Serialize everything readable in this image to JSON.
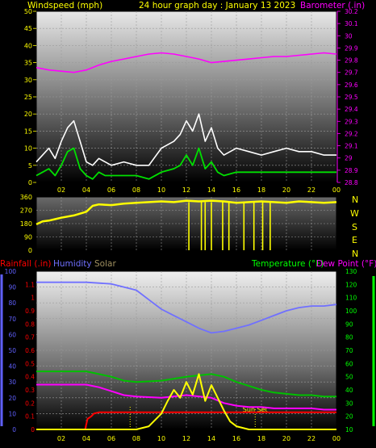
{
  "header": {
    "left_label": "Windspeed (mph)",
    "center_label": "24 hour graph day : January 13 2023",
    "right_label": "Barometer (.in)"
  },
  "bottom_header": {
    "rainfall": "Rainfall (.in)",
    "humidity": "Humidity",
    "solar": "Solar",
    "temperature": "Temperature (°F)",
    "dewpoint": "Dew Point (°F)"
  },
  "compass": [
    "N",
    "W",
    "S",
    "E",
    "N"
  ],
  "colors": {
    "wind_gust": "#ffffff",
    "wind_avg": "#00e000",
    "barometer": "#ff00ff",
    "direction": "#ffff00",
    "humidity": "#7070ff",
    "rainfall": "#ff0000",
    "solar": "#ffff00",
    "temperature": "#00c000",
    "dewpoint": "#ff00ff",
    "axis_green": "#00ff00",
    "axis_blue": "#6060ff"
  },
  "chart_data": [
    {
      "type": "line",
      "name": "wind_barometer",
      "x_ticks": [
        "02",
        "04",
        "06",
        "08",
        "10",
        "12",
        "14",
        "16",
        "18",
        "20",
        "22",
        "00"
      ],
      "left_axis": {
        "range": [
          0,
          50
        ],
        "ticks": [
          0,
          5,
          10,
          15,
          20,
          25,
          30,
          35,
          40,
          45,
          50
        ]
      },
      "right_axis": {
        "range": [
          28.8,
          30.2
        ],
        "ticks": [
          "28.8",
          "28.9",
          "29",
          "29.1",
          "29.2",
          "29.3",
          "29.4",
          "29.5",
          "29.6",
          "29.7",
          "29.8",
          "29.9",
          "30",
          "30.1",
          "30.2"
        ]
      },
      "series": [
        {
          "key": "gust",
          "axis": "left",
          "x": [
            0,
            0.5,
            1,
            1.5,
            2,
            2.5,
            3,
            3.5,
            4,
            4.5,
            5,
            5.5,
            6,
            7,
            8,
            9,
            10,
            11,
            11.5,
            12,
            12.5,
            13,
            13.5,
            14,
            14.5,
            15,
            16,
            17,
            18,
            19,
            20,
            21,
            22,
            23,
            24
          ],
          "y": [
            6,
            8,
            10,
            7,
            12,
            16,
            18,
            12,
            6,
            5,
            7,
            6,
            5,
            6,
            5,
            5,
            10,
            12,
            14,
            18,
            15,
            20,
            12,
            16,
            10,
            8,
            10,
            9,
            8,
            9,
            10,
            9,
            9,
            8,
            8
          ]
        },
        {
          "key": "avg",
          "axis": "left",
          "x": [
            0,
            0.5,
            1,
            1.5,
            2,
            2.5,
            3,
            3.5,
            4,
            4.5,
            5,
            5.5,
            6,
            7,
            8,
            9,
            10,
            11,
            11.5,
            12,
            12.5,
            13,
            13.5,
            14,
            14.5,
            15,
            16,
            17,
            18,
            19,
            20,
            21,
            22,
            23,
            24
          ],
          "y": [
            2,
            3,
            4,
            2,
            5,
            9,
            10,
            4,
            2,
            1,
            3,
            2,
            2,
            2,
            2,
            1,
            3,
            4,
            5,
            8,
            5,
            10,
            4,
            6,
            3,
            2,
            3,
            3,
            3,
            3,
            3,
            3,
            3,
            3,
            3
          ]
        },
        {
          "key": "barometer",
          "axis": "right",
          "x": [
            0,
            1,
            2,
            3,
            4,
            5,
            6,
            7,
            8,
            9,
            10,
            11,
            12,
            13,
            14,
            15,
            16,
            17,
            18,
            19,
            20,
            21,
            22,
            23,
            24
          ],
          "y": [
            29.74,
            29.72,
            29.71,
            29.7,
            29.72,
            29.76,
            29.79,
            29.81,
            29.83,
            29.85,
            29.86,
            29.85,
            29.83,
            29.81,
            29.78,
            29.79,
            29.8,
            29.81,
            29.82,
            29.83,
            29.83,
            29.84,
            29.85,
            29.86,
            29.85
          ]
        }
      ]
    },
    {
      "type": "line",
      "name": "wind_direction",
      "x_ticks": [
        "02",
        "04",
        "06",
        "08",
        "10",
        "12",
        "14",
        "16",
        "18",
        "20",
        "22",
        "00"
      ],
      "left_axis": {
        "range": [
          0,
          360
        ],
        "ticks": [
          0,
          90,
          180,
          270,
          360
        ]
      },
      "series": [
        {
          "key": "direction",
          "x": [
            0,
            0.5,
            1,
            1.5,
            2,
            3,
            4,
            4.5,
            5,
            6,
            7,
            8,
            9,
            10,
            11,
            12,
            13,
            14,
            15,
            16,
            17,
            18,
            19,
            20,
            21,
            22,
            23,
            24
          ],
          "y": [
            175,
            195,
            200,
            210,
            220,
            235,
            260,
            300,
            310,
            305,
            315,
            320,
            325,
            330,
            325,
            335,
            330,
            335,
            330,
            320,
            325,
            330,
            325,
            320,
            330,
            325,
            320,
            325
          ]
        },
        {
          "key": "spikes",
          "x": [
            12.2,
            13.2,
            13.5,
            14.0,
            14.9,
            15.4,
            16.6,
            17.4,
            18.1,
            18.7
          ],
          "y": [
            0,
            0,
            0,
            0,
            0,
            0,
            0,
            0,
            0,
            0
          ]
        }
      ]
    },
    {
      "type": "line",
      "name": "rain_humidity_solar_temp",
      "x_ticks": [
        "02",
        "04",
        "06",
        "08",
        "10",
        "12",
        "14",
        "16",
        "18",
        "20",
        "22",
        "00"
      ],
      "left_axis": {
        "range": [
          0,
          100
        ],
        "ticks": [
          0,
          10,
          20,
          30,
          40,
          50,
          60,
          70,
          80,
          90,
          100
        ]
      },
      "rain_axis": {
        "range": [
          0,
          1.2
        ],
        "ticks": [
          "0",
          "0.1",
          "0.2",
          "0.3",
          "0.4",
          "0.5",
          "0.6",
          "0.7",
          "0.8",
          "0.9",
          "1",
          "1.1"
        ]
      },
      "right_axis": {
        "range": [
          10,
          130
        ],
        "ticks": [
          10,
          20,
          30,
          40,
          50,
          60,
          70,
          80,
          90,
          100,
          110,
          120,
          130
        ]
      },
      "series": [
        {
          "key": "humidity",
          "axis": "left",
          "x": [
            0,
            2,
            4,
            6,
            7,
            8,
            9,
            10,
            11,
            12,
            13,
            14,
            15,
            16,
            17,
            18,
            19,
            20,
            21,
            22,
            23,
            24
          ],
          "y": [
            93,
            93,
            93,
            92,
            90,
            88,
            82,
            76,
            72,
            68,
            64,
            61,
            62,
            64,
            66,
            69,
            72,
            75,
            77,
            78,
            78,
            79
          ]
        },
        {
          "key": "rainfall",
          "axis": "rain",
          "x": [
            0,
            3.9,
            4.1,
            4.4,
            4.6,
            5,
            6,
            8,
            10,
            12,
            14,
            16,
            18,
            20,
            22,
            24
          ],
          "y": [
            0,
            0,
            0.08,
            0.1,
            0.12,
            0.13,
            0.13,
            0.13,
            0.13,
            0.13,
            0.13,
            0.13,
            0.13,
            0.13,
            0.13,
            0.13
          ]
        },
        {
          "key": "solar",
          "axis": "left",
          "x": [
            0,
            8,
            9,
            9.5,
            10,
            10.5,
            11,
            11.5,
            12,
            12.5,
            13,
            13.5,
            14,
            14.5,
            15,
            15.5,
            16,
            17,
            24
          ],
          "y": [
            0,
            0,
            2,
            6,
            10,
            18,
            25,
            20,
            30,
            22,
            35,
            18,
            28,
            20,
            12,
            5,
            2,
            0,
            0
          ]
        },
        {
          "key": "temperature",
          "axis": "right",
          "x": [
            0,
            2,
            4,
            5,
            6,
            7,
            8,
            10,
            12,
            14,
            15,
            16,
            17,
            18,
            19,
            20,
            21,
            22,
            23,
            24
          ],
          "y": [
            54,
            54,
            54,
            52,
            50,
            47,
            46,
            47,
            50,
            52,
            50,
            46,
            43,
            40,
            38,
            37,
            36,
            36,
            35,
            35
          ]
        },
        {
          "key": "dewpoint",
          "axis": "right",
          "x": [
            0,
            2,
            4,
            5,
            6,
            7,
            8,
            10,
            12,
            14,
            15,
            16,
            17,
            18,
            19,
            20,
            21,
            22,
            23,
            24
          ],
          "y": [
            44,
            44,
            44,
            42,
            39,
            36,
            35,
            34,
            36,
            34,
            30,
            28,
            27,
            27,
            26,
            26,
            26,
            26,
            25,
            25
          ]
        }
      ],
      "markers": [
        {
          "x": 7.5,
          "label": ""
        },
        {
          "x": 17.5,
          "label": "Sun Set"
        }
      ]
    }
  ]
}
